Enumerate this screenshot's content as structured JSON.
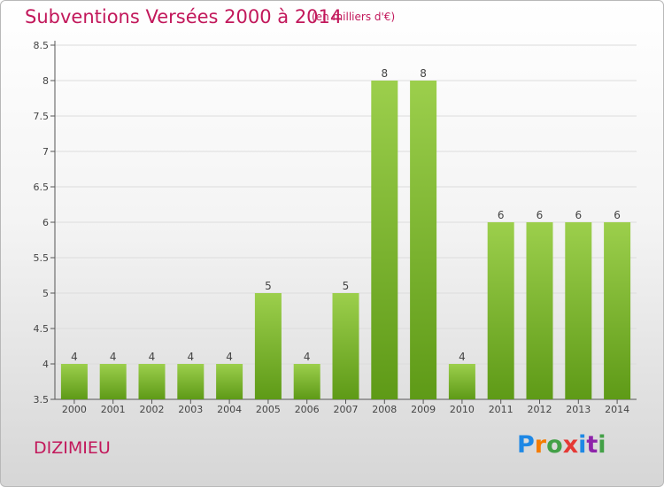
{
  "title": "Subventions Versées 2000 à 2014",
  "subtitle": "(en milliers d'€)",
  "place": "DIZIMIEU",
  "logo": {
    "text": "Proxiti",
    "letters": [
      {
        "ch": "P",
        "color": "#1e88e5"
      },
      {
        "ch": "r",
        "color": "#f57c00"
      },
      {
        "ch": "o",
        "color": "#43a047"
      },
      {
        "ch": "x",
        "color": "#e53935"
      },
      {
        "ch": "i",
        "color": "#1e88e5"
      },
      {
        "ch": "t",
        "color": "#8e24aa"
      },
      {
        "ch": "i",
        "color": "#43a047"
      }
    ]
  },
  "colors": {
    "bar_top": "#9ccf4c",
    "bar_bottom": "#5e9a17",
    "text_accent": "#c2185b",
    "grid": "#dcdcdc"
  },
  "chart_data": {
    "type": "bar",
    "categories": [
      "2000",
      "2001",
      "2002",
      "2003",
      "2004",
      "2005",
      "2006",
      "2007",
      "2008",
      "2009",
      "2010",
      "2011",
      "2012",
      "2013",
      "2014"
    ],
    "values": [
      4,
      4,
      4,
      4,
      4,
      5,
      4,
      5,
      8,
      8,
      4,
      6,
      6,
      6,
      6
    ],
    "data_labels": [
      "4",
      "4",
      "4",
      "4",
      "4",
      "5",
      "4",
      "5",
      "8",
      "8",
      "4",
      "6",
      "6",
      "6",
      "6"
    ],
    "ylim": [
      3.5,
      8.5
    ],
    "yticks": [
      "3.5",
      "4",
      "4.5",
      "5",
      "5.5",
      "6",
      "6.5",
      "7",
      "7.5",
      "8",
      "8.5"
    ],
    "grid": true,
    "xlabel": "",
    "ylabel": ""
  }
}
